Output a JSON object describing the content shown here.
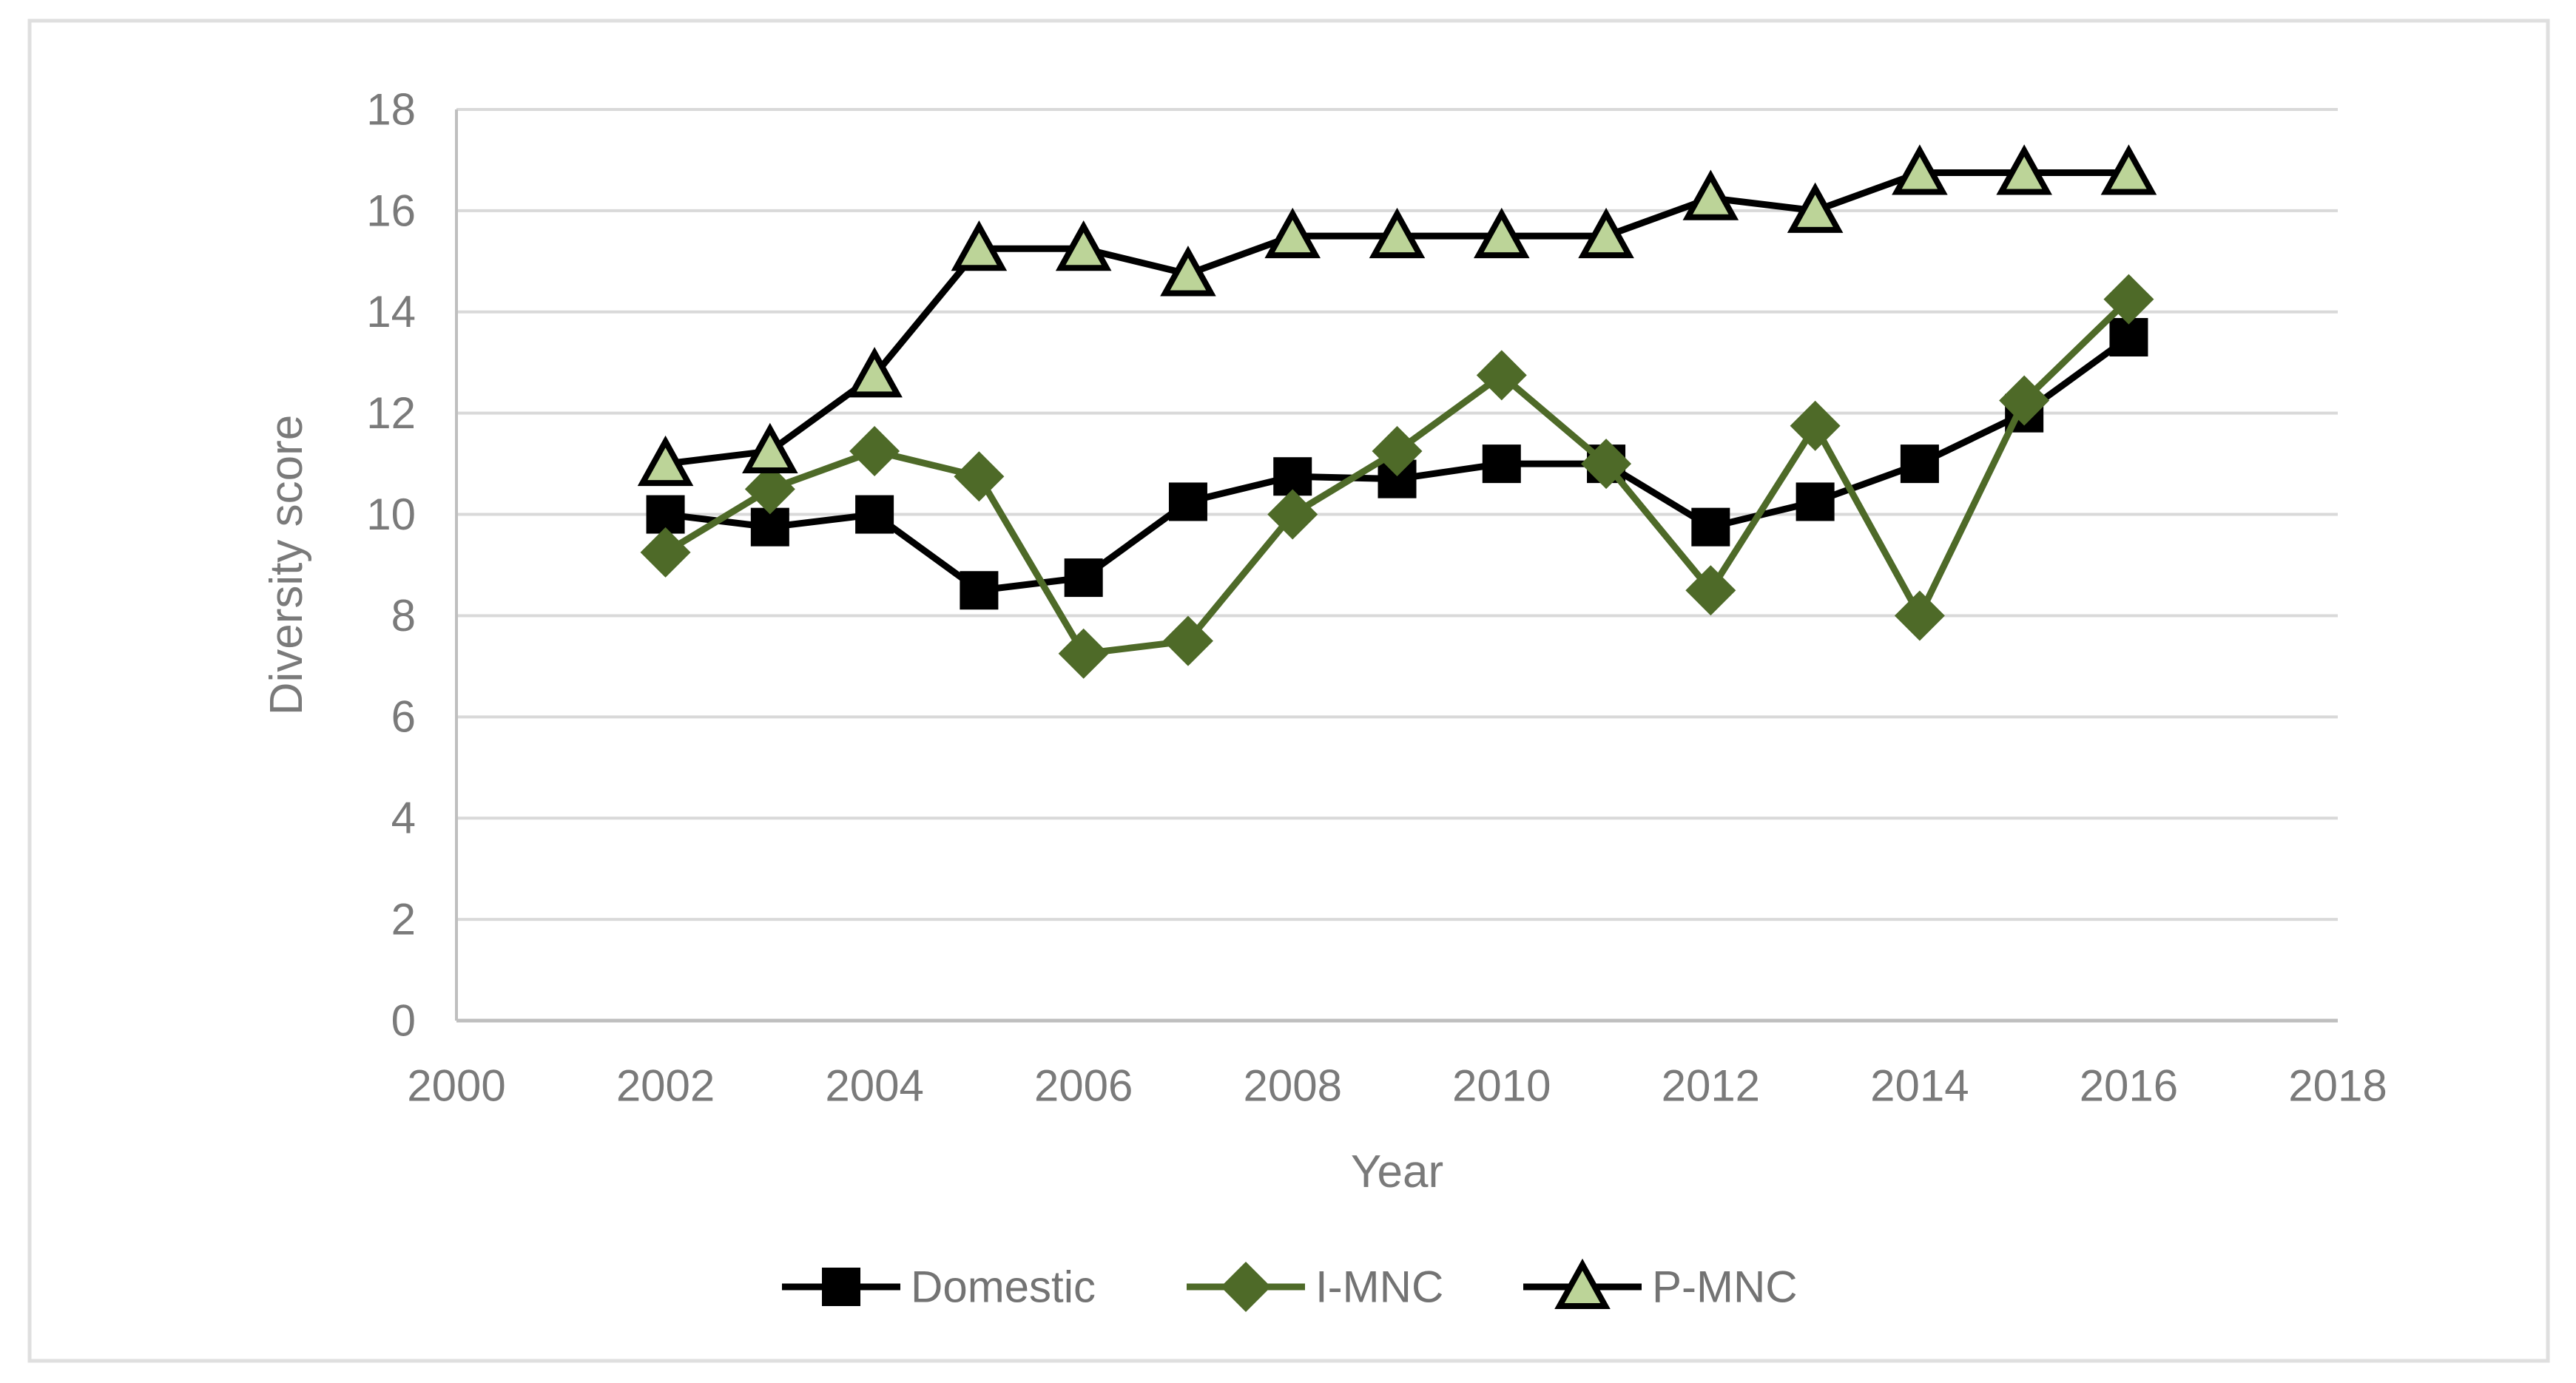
{
  "figure": {
    "background_color": "#ffffff",
    "frame_border_color": "#dfdfdf",
    "plot_gridline_color": "#d9d9d9",
    "axis_line_color": "#bfbfbf",
    "text_color": "#7a7a7a",
    "legend_text_color": "#737373"
  },
  "chart_data": {
    "type": "line",
    "title": "",
    "xlabel": "Year",
    "ylabel": "Diversity score",
    "xlim": [
      2000,
      2018
    ],
    "ylim": [
      0,
      18
    ],
    "x_ticks": [
      2000,
      2002,
      2004,
      2006,
      2008,
      2010,
      2012,
      2014,
      2016,
      2018
    ],
    "y_ticks": [
      0,
      2,
      4,
      6,
      8,
      10,
      12,
      14,
      16,
      18
    ],
    "grid": true,
    "legend_position": "bottom",
    "x": [
      2002,
      2003,
      2004,
      2005,
      2006,
      2007,
      2008,
      2009,
      2010,
      2011,
      2012,
      2013,
      2014,
      2015,
      2016
    ],
    "series": [
      {
        "name": "Domestic",
        "marker": "square",
        "line_color": "#000000",
        "marker_fill": "#000000",
        "marker_stroke": "#000000",
        "values": [
          10.0,
          9.75,
          10.0,
          8.5,
          8.75,
          10.25,
          10.75,
          10.7,
          11.0,
          11.0,
          9.75,
          10.25,
          11.0,
          12.0,
          13.5
        ]
      },
      {
        "name": "I-MNC",
        "marker": "diamond",
        "line_color": "#4e6a28",
        "marker_fill": "#4e6a28",
        "marker_stroke": "#4e6a28",
        "values": [
          9.25,
          10.5,
          11.25,
          10.75,
          7.25,
          7.5,
          10.0,
          11.25,
          12.75,
          11.0,
          8.5,
          11.75,
          8.0,
          12.25,
          14.25
        ]
      },
      {
        "name": "P-MNC",
        "marker": "triangle",
        "line_color": "#000000",
        "marker_fill": "#bcd498",
        "marker_stroke": "#000000",
        "values": [
          11.0,
          11.25,
          12.75,
          15.25,
          15.25,
          14.75,
          15.5,
          15.5,
          15.5,
          15.5,
          16.25,
          16.0,
          16.75,
          16.75,
          16.75
        ]
      }
    ]
  }
}
